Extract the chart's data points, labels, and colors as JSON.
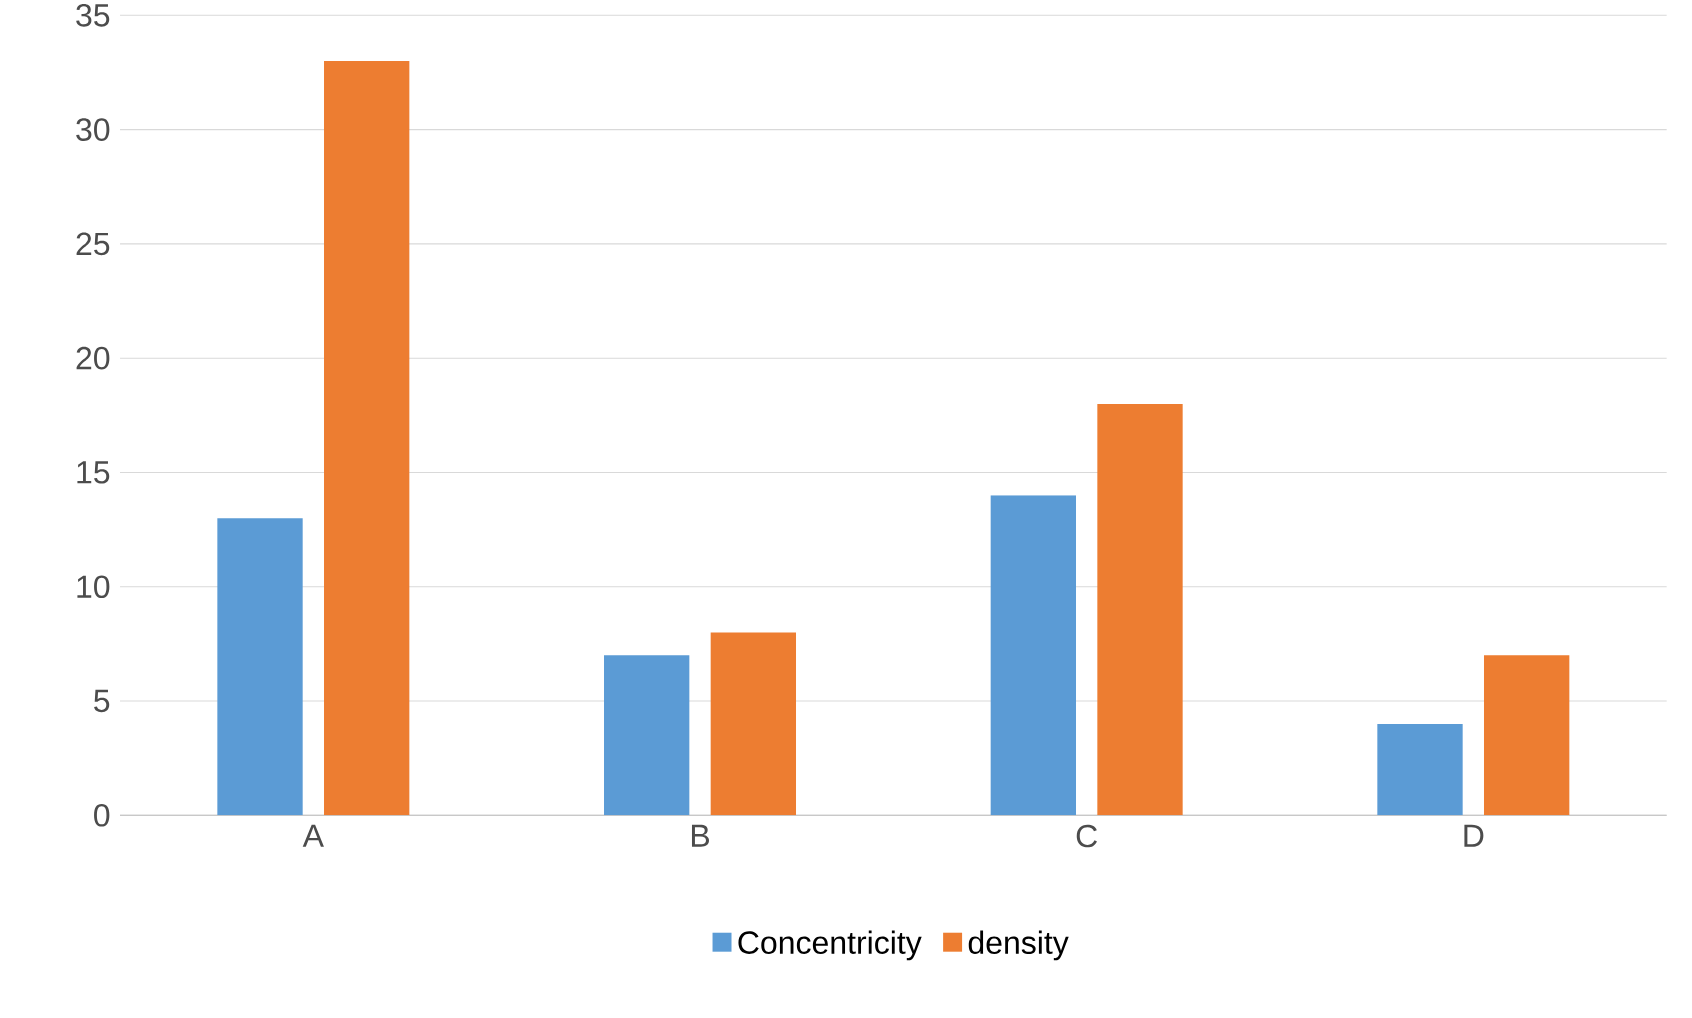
{
  "chart_data": {
    "type": "bar",
    "categories": [
      "A",
      "B",
      "C",
      "D"
    ],
    "series": [
      {
        "name": "Concentricity",
        "color": "#5b9bd5",
        "values": [
          13,
          7,
          14,
          4
        ]
      },
      {
        "name": "density",
        "color": "#ed7d31",
        "values": [
          33,
          8,
          18,
          7
        ]
      }
    ],
    "ylim": [
      0,
      35
    ],
    "yticks": [
      0,
      5,
      10,
      15,
      20,
      25,
      30,
      35
    ],
    "grid": "y",
    "legend": "bottom"
  }
}
